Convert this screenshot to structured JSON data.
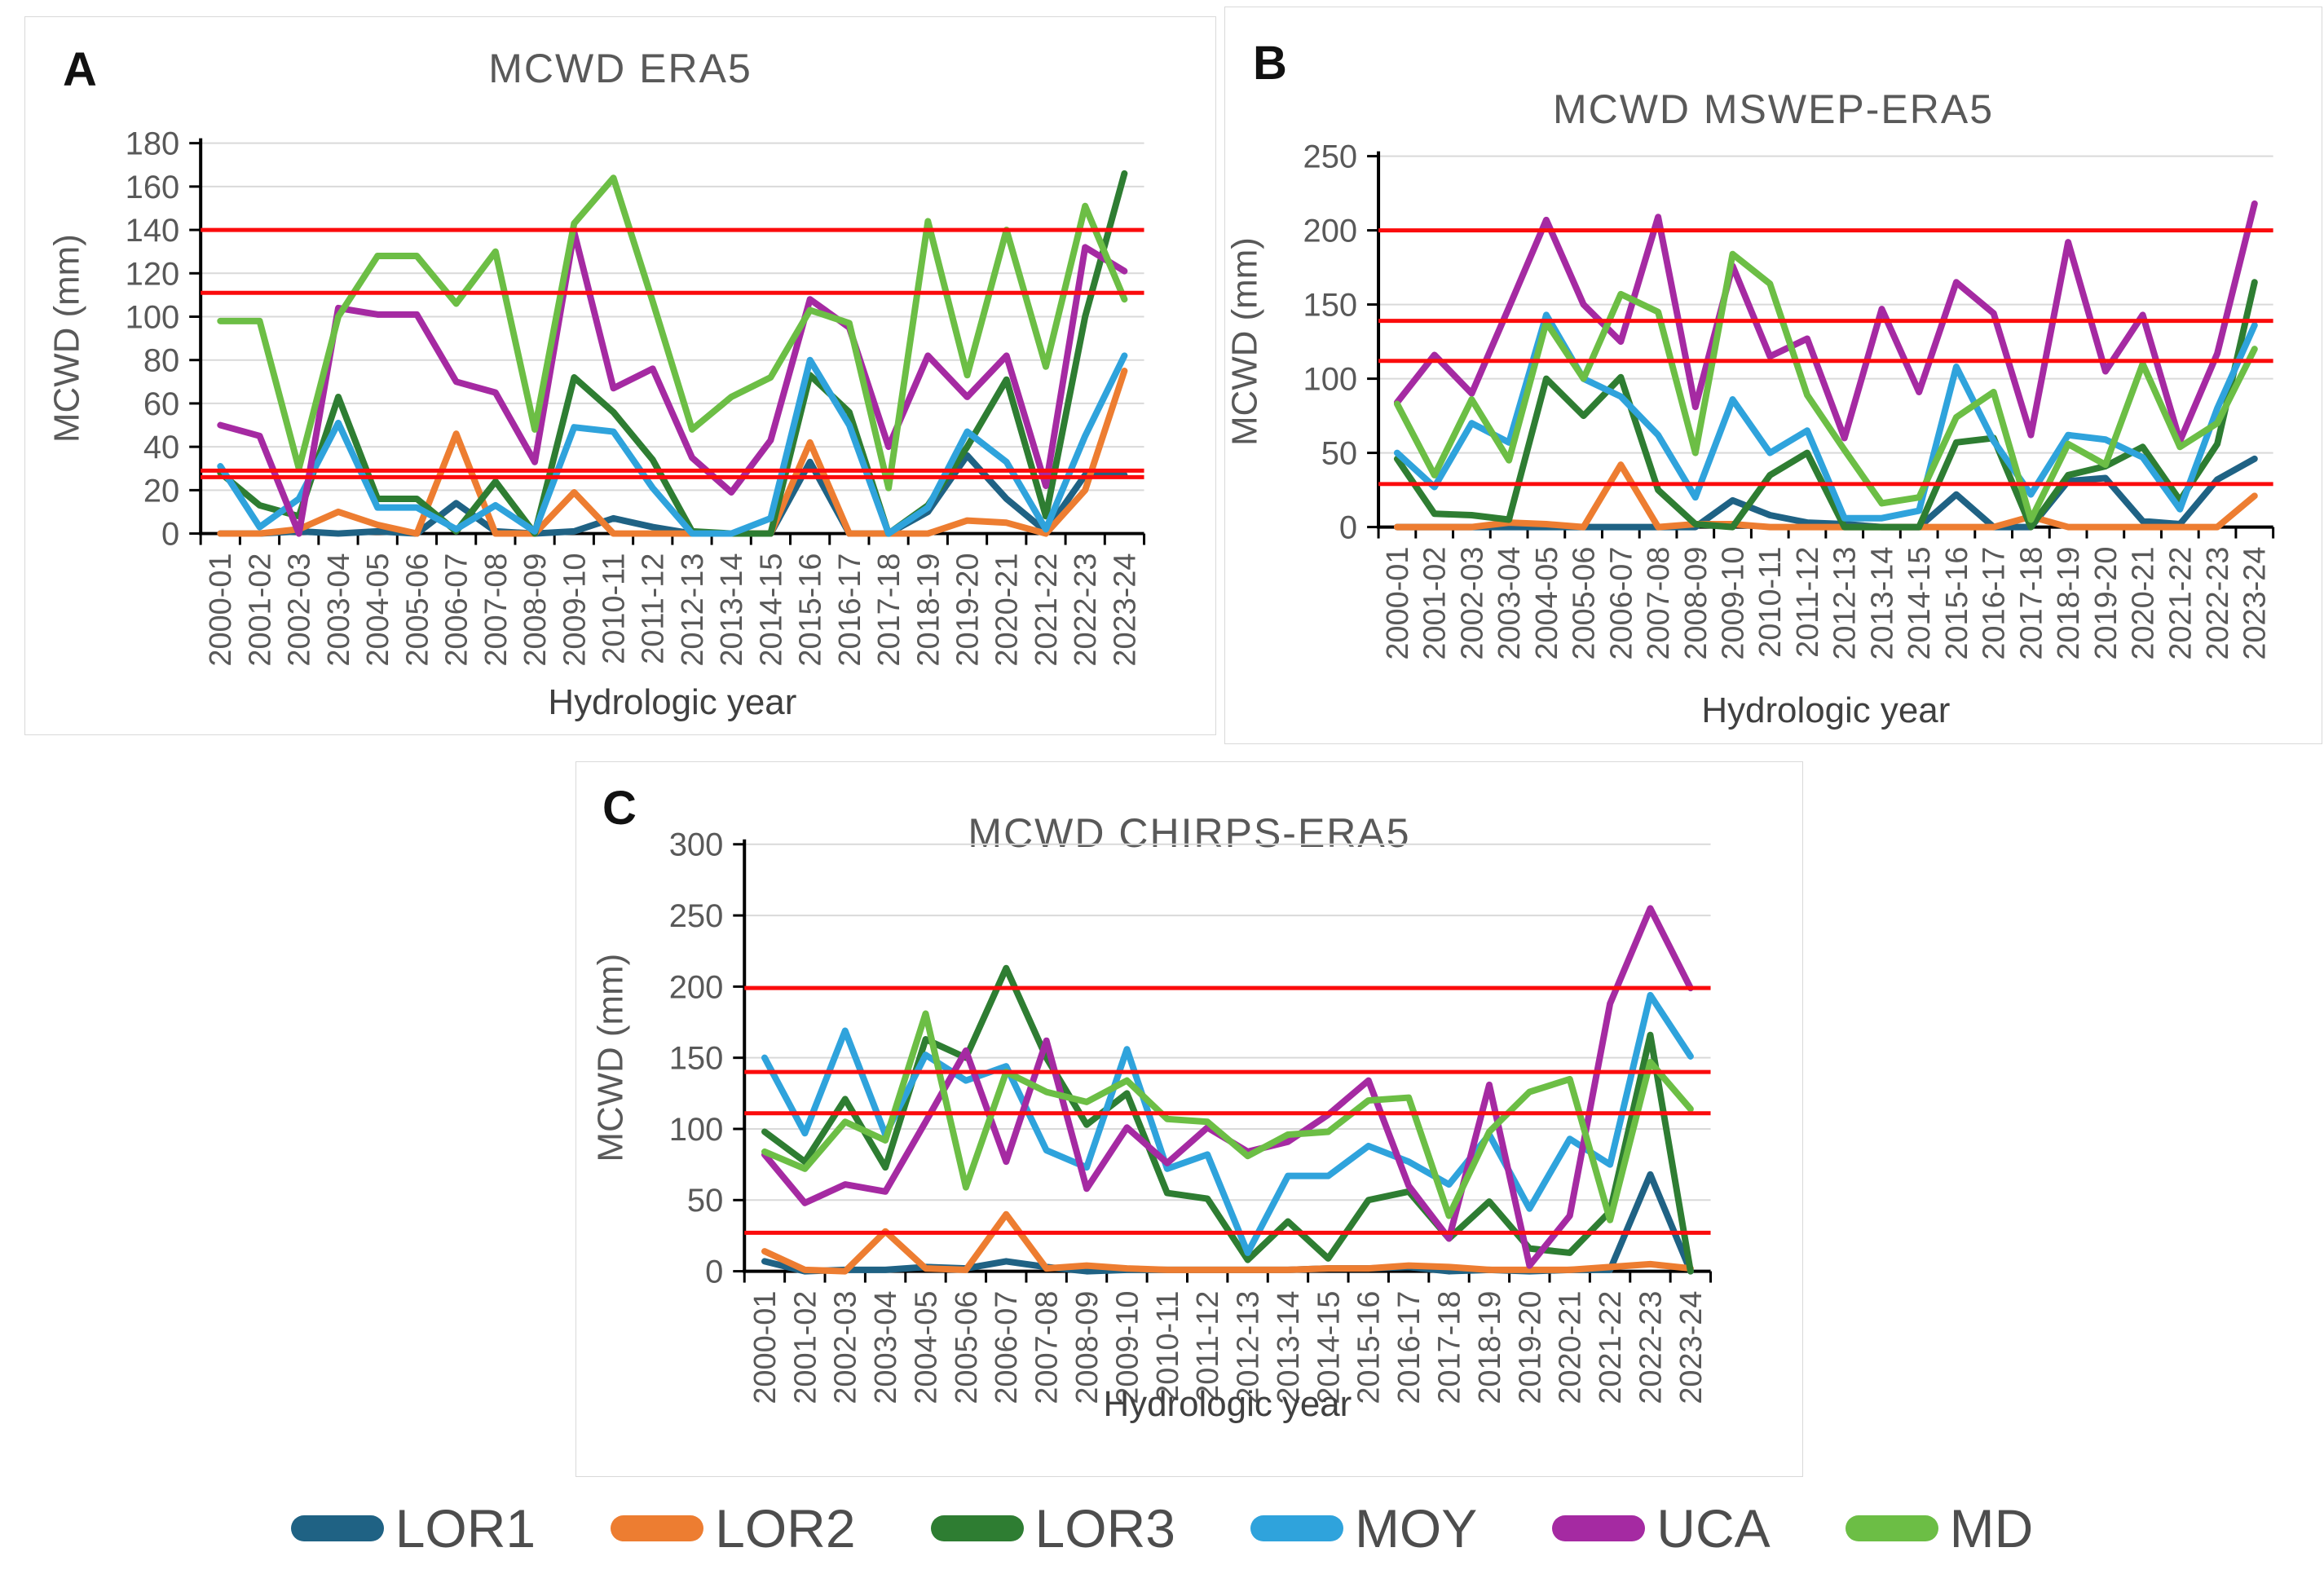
{
  "legend": {
    "items": [
      {
        "label": "LOR1",
        "color": "#1F6284"
      },
      {
        "label": "LOR2",
        "color": "#ED7D31"
      },
      {
        "label": "LOR3",
        "color": "#2E7D32"
      },
      {
        "label": "MOY",
        "color": "#2FA3DC"
      },
      {
        "label": "UCA",
        "color": "#A52AA2"
      },
      {
        "label": "MD",
        "color": "#6CBE45"
      }
    ]
  },
  "threshold_color": "#FB0B0C",
  "chart_data": [
    {
      "type": "line",
      "panel_label": "A",
      "title": "MCWD ERA5",
      "xlabel": "Hydrologic year",
      "ylabel": "MCWD (mm)",
      "ylim": [
        0,
        180
      ],
      "ytick_step": 20,
      "grid": true,
      "legend_position": "none",
      "threshold_values": [
        140,
        111,
        29,
        26
      ],
      "categories": [
        "2000-01",
        "2001-02",
        "2002-03",
        "2003-04",
        "2004-05",
        "2005-06",
        "2006-07",
        "2007-08",
        "2008-09",
        "2009-10",
        "2010-11",
        "2011-12",
        "2012-13",
        "2013-14",
        "2014-15",
        "2015-16",
        "2016-17",
        "2017-18",
        "2018-19",
        "2019-20",
        "2020-21",
        "2021-22",
        "2022-23",
        "2023-24"
      ],
      "series": [
        {
          "name": "LOR1",
          "values": [
            0,
            0,
            1,
            0,
            1,
            0,
            14,
            1,
            0,
            1,
            7,
            3,
            0,
            0,
            0,
            33,
            0,
            0,
            10,
            36,
            16,
            1,
            27,
            27
          ]
        },
        {
          "name": "LOR2",
          "values": [
            0,
            0,
            2,
            10,
            4,
            0,
            46,
            0,
            0,
            19,
            0,
            0,
            0,
            0,
            0,
            42,
            0,
            0,
            0,
            6,
            5,
            0,
            20,
            75
          ]
        },
        {
          "name": "LOR3",
          "values": [
            28,
            13,
            8,
            63,
            16,
            16,
            1,
            24,
            0,
            72,
            56,
            34,
            1,
            0,
            0,
            73,
            56,
            0,
            13,
            40,
            71,
            8,
            100,
            166
          ]
        },
        {
          "name": "MOY",
          "values": [
            31,
            3,
            16,
            51,
            12,
            12,
            2,
            13,
            1,
            49,
            47,
            21,
            0,
            0,
            7,
            80,
            50,
            0,
            12,
            47,
            33,
            2,
            45,
            82
          ]
        },
        {
          "name": "UCA",
          "values": [
            50,
            45,
            0,
            104,
            101,
            101,
            70,
            65,
            33,
            139,
            67,
            76,
            35,
            19,
            43,
            108,
            95,
            40,
            82,
            63,
            82,
            22,
            132,
            121
          ]
        },
        {
          "name": "MD",
          "values": [
            98,
            98,
            30,
            100,
            128,
            128,
            106,
            130,
            48,
            143,
            164,
            107,
            48,
            63,
            72,
            103,
            97,
            21,
            144,
            73,
            140,
            77,
            151,
            108
          ]
        }
      ]
    },
    {
      "type": "line",
      "panel_label": "B",
      "title": "MCWD  MSWEP-ERA5",
      "xlabel": "Hydrologic year",
      "ylabel": "MCWD (mm)",
      "ylim": [
        0,
        250
      ],
      "ytick_step": 50,
      "grid": true,
      "legend_position": "none",
      "threshold_values": [
        200,
        139,
        112,
        29
      ],
      "categories": [
        "2000-01",
        "2001-02",
        "2002-03",
        "2003-04",
        "2004-05",
        "2005-06",
        "2006-07",
        "2007-08",
        "2008-09",
        "2009-10",
        "2010-11",
        "2011-12",
        "2012-13",
        "2013-14",
        "2014-15",
        "2015-16",
        "2016-17",
        "2017-18",
        "2018-19",
        "2019-20",
        "2020-21",
        "2021-22",
        "2022-23",
        "2023-24"
      ],
      "series": [
        {
          "name": "LOR1",
          "values": [
            0,
            0,
            0,
            0,
            0,
            0,
            0,
            0,
            0,
            18,
            8,
            3,
            2,
            0,
            0,
            22,
            0,
            0,
            31,
            33,
            4,
            2,
            32,
            46
          ]
        },
        {
          "name": "LOR2",
          "values": [
            0,
            0,
            0,
            3,
            2,
            0,
            42,
            0,
            2,
            2,
            0,
            0,
            0,
            0,
            0,
            0,
            0,
            7,
            0,
            0,
            0,
            0,
            0,
            21
          ]
        },
        {
          "name": "LOR3",
          "values": [
            46,
            9,
            8,
            5,
            100,
            75,
            101,
            25,
            2,
            0,
            35,
            50,
            0,
            0,
            0,
            57,
            60,
            0,
            35,
            41,
            54,
            18,
            56,
            165
          ]
        },
        {
          "name": "MOY",
          "values": [
            50,
            27,
            70,
            57,
            143,
            100,
            88,
            62,
            20,
            86,
            50,
            65,
            6,
            6,
            11,
            108,
            58,
            22,
            62,
            59,
            47,
            12,
            80,
            136
          ]
        },
        {
          "name": "UCA",
          "values": [
            84,
            116,
            90,
            148,
            207,
            150,
            125,
            209,
            81,
            176,
            115,
            127,
            60,
            147,
            91,
            165,
            144,
            62,
            192,
            105,
            143,
            58,
            117,
            218
          ]
        },
        {
          "name": "MD",
          "values": [
            83,
            35,
            86,
            45,
            138,
            100,
            157,
            145,
            50,
            184,
            164,
            89,
            52,
            16,
            20,
            74,
            91,
            5,
            56,
            42,
            110,
            54,
            70,
            120
          ]
        }
      ]
    },
    {
      "type": "line",
      "panel_label": "C",
      "title": "MCWD  CHIRPS-ERA5",
      "xlabel": "Hydrologic year",
      "ylabel": "MCWD (mm)",
      "ylim": [
        0,
        300
      ],
      "ytick_step": 50,
      "grid": true,
      "legend_position": "none",
      "threshold_values": [
        199,
        140,
        111,
        27
      ],
      "categories": [
        "2000-01",
        "2001-02",
        "2002-03",
        "2003-04",
        "2004-05",
        "2005-06",
        "2006-07",
        "2007-08",
        "2008-09",
        "2009-10",
        "2010-11",
        "2011-12",
        "2012-13",
        "2013-14",
        "2014-15",
        "2015-16",
        "2016-17",
        "2017-18",
        "2018-19",
        "2019-20",
        "2020-21",
        "2021-22",
        "2022-23",
        "2023-24"
      ],
      "series": [
        {
          "name": "LOR1",
          "values": [
            7,
            0,
            1,
            1,
            3,
            2,
            7,
            3,
            0,
            1,
            1,
            1,
            1,
            1,
            2,
            2,
            3,
            0,
            1,
            0,
            1,
            1,
            68,
            0
          ]
        },
        {
          "name": "LOR2",
          "values": [
            14,
            1,
            0,
            28,
            2,
            1,
            40,
            2,
            4,
            2,
            1,
            1,
            1,
            1,
            2,
            2,
            4,
            3,
            1,
            1,
            1,
            3,
            5,
            2
          ]
        },
        {
          "name": "LOR3",
          "values": [
            98,
            77,
            121,
            73,
            163,
            150,
            213,
            150,
            103,
            125,
            55,
            51,
            8,
            35,
            9,
            50,
            56,
            23,
            49,
            16,
            13,
            42,
            166,
            0
          ]
        },
        {
          "name": "MOY",
          "values": [
            150,
            97,
            169,
            96,
            152,
            134,
            144,
            85,
            73,
            156,
            72,
            82,
            13,
            67,
            67,
            88,
            77,
            61,
            96,
            44,
            93,
            75,
            194,
            151
          ]
        },
        {
          "name": "UCA",
          "values": [
            82,
            48,
            61,
            56,
            105,
            155,
            77,
            162,
            58,
            101,
            76,
            101,
            84,
            91,
            110,
            134,
            60,
            23,
            131,
            4,
            39,
            188,
            255,
            199
          ]
        },
        {
          "name": "MD",
          "values": [
            84,
            72,
            105,
            92,
            181,
            59,
            140,
            126,
            119,
            134,
            107,
            105,
            81,
            96,
            98,
            120,
            122,
            39,
            98,
            126,
            135,
            36,
            147,
            114
          ]
        }
      ]
    }
  ]
}
